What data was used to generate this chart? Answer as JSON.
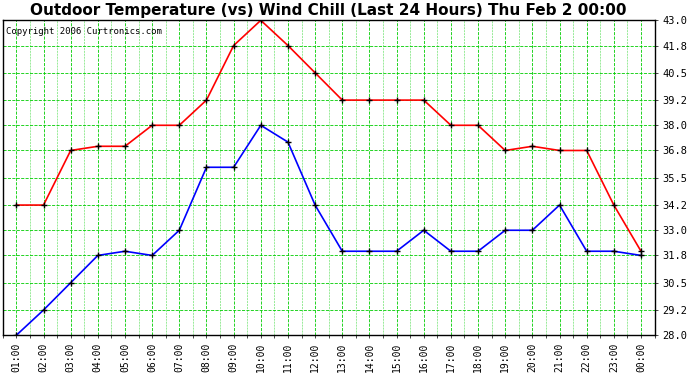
{
  "title": "Outdoor Temperature (vs) Wind Chill (Last 24 Hours) Thu Feb 2 00:00",
  "copyright": "Copyright 2006 Curtronics.com",
  "x_labels": [
    "01:00",
    "02:00",
    "03:00",
    "04:00",
    "05:00",
    "06:00",
    "07:00",
    "08:00",
    "09:00",
    "10:00",
    "11:00",
    "12:00",
    "13:00",
    "14:00",
    "15:00",
    "16:00",
    "17:00",
    "18:00",
    "19:00",
    "20:00",
    "21:00",
    "22:00",
    "23:00",
    "00:00"
  ],
  "temp_red": [
    34.2,
    34.2,
    36.8,
    37.0,
    37.0,
    38.0,
    38.0,
    39.2,
    41.8,
    43.0,
    41.8,
    40.5,
    39.2,
    39.2,
    39.2,
    39.2,
    38.0,
    38.0,
    36.8,
    37.0,
    36.8,
    36.8,
    34.2,
    32.0
  ],
  "wind_blue": [
    28.0,
    29.2,
    30.5,
    31.8,
    32.0,
    31.8,
    33.0,
    36.0,
    36.0,
    38.0,
    37.2,
    34.2,
    32.0,
    32.0,
    32.0,
    33.0,
    32.0,
    32.0,
    33.0,
    33.0,
    34.2,
    32.0,
    32.0,
    31.8
  ],
  "ylim_min": 28.0,
  "ylim_max": 43.0,
  "yticks": [
    28.0,
    29.2,
    30.5,
    31.8,
    33.0,
    34.2,
    35.5,
    36.8,
    38.0,
    39.2,
    40.5,
    41.8,
    43.0
  ],
  "plot_bg": "#ffffff",
  "fig_bg": "#ffffff",
  "grid_color": "#00cc00",
  "red_line": "#ff0000",
  "blue_line": "#0000ff",
  "title_color": "#000000",
  "title_fontsize": 11,
  "tick_label_color": "#000000",
  "copyright_color": "#000000",
  "spine_color": "#000000",
  "marker_size": 4,
  "linewidth": 1.2
}
